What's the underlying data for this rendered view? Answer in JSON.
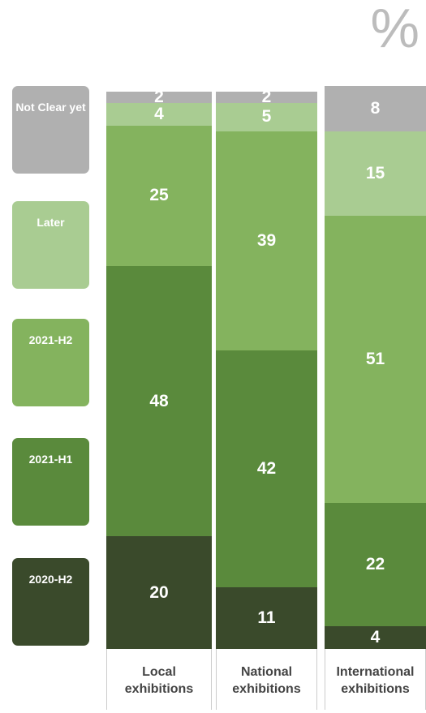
{
  "chart_data": {
    "type": "stacked_bar",
    "unit": "%",
    "categories": [
      "Local exhibitions",
      "National exhibitions",
      "International exhibitions"
    ],
    "series": [
      {
        "name": "2020-H2",
        "color": "#3a4a2b",
        "values": [
          20,
          11,
          4
        ]
      },
      {
        "name": "2021-H1",
        "color": "#5a8a3c",
        "values": [
          48,
          42,
          22
        ]
      },
      {
        "name": "2021-H2",
        "color": "#84b35e",
        "values": [
          25,
          39,
          51
        ]
      },
      {
        "name": "Later",
        "color": "#a9cc92",
        "values": [
          4,
          5,
          15
        ]
      },
      {
        "name": "Not Clear yet",
        "color": "#b0b0b0",
        "values": [
          2,
          2,
          8
        ]
      }
    ],
    "ylim": [
      0,
      100
    ]
  }
}
